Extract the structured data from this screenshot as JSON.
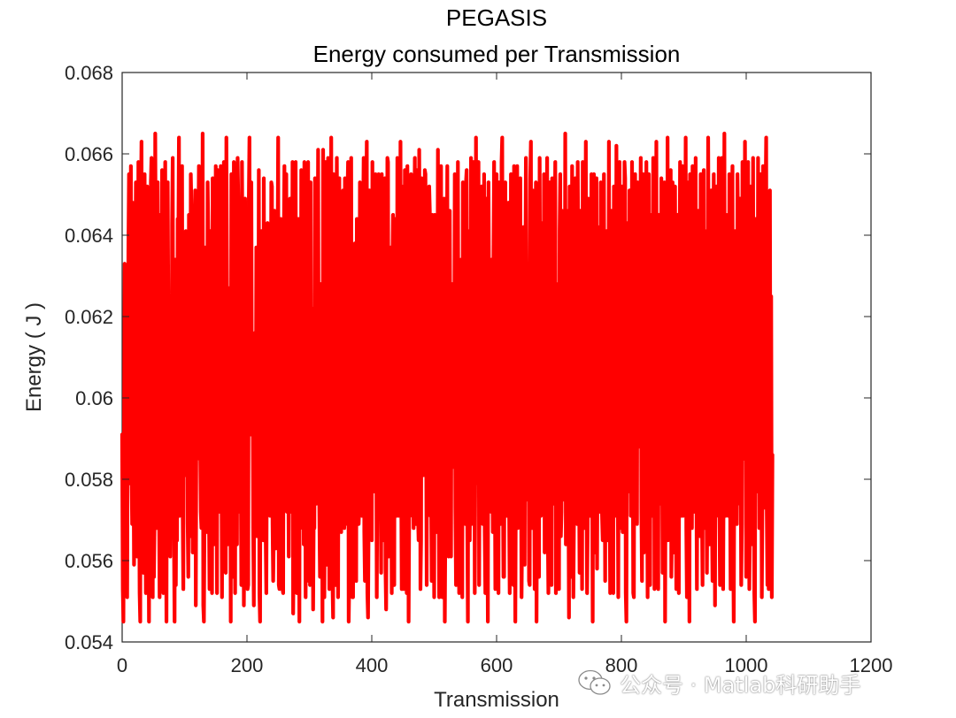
{
  "chart_data": {
    "type": "line",
    "title": "PEGASIS",
    "subtitle": "Energy consumed per Transmission",
    "xlabel": "Transmission",
    "ylabel": "Energy ( J )",
    "xlim": [
      0,
      1200
    ],
    "ylim": [
      0.054,
      0.068
    ],
    "xticks": [
      0,
      200,
      400,
      600,
      800,
      1000,
      1200
    ],
    "xtick_labels": [
      "0",
      "200",
      "400",
      "600",
      "800",
      "1000",
      "1200"
    ],
    "yticks": [
      0.054,
      0.056,
      0.058,
      0.06,
      0.062,
      0.064,
      0.066,
      0.068
    ],
    "ytick_labels": [
      "0.054",
      "0.056",
      "0.058",
      "0.06",
      "0.062",
      "0.064",
      "0.066",
      "0.068"
    ],
    "grid": false,
    "series": [
      {
        "color": "#ff0000",
        "x_start": 0,
        "x_step": 1,
        "values": [
          0.0591,
          0.0553,
          0.0545,
          0.0586,
          0.0633,
          0.0571,
          0.0592,
          0.0589,
          0.0551,
          0.0595,
          0.0636,
          0.0655,
          0.0579,
          0.0606,
          0.0657,
          0.0584,
          0.0569,
          0.0648,
          0.0591,
          0.0559,
          0.0571,
          0.0623,
          0.0653,
          0.0614,
          0.0561,
          0.0592,
          0.0658,
          0.0586,
          0.0552,
          0.0545,
          0.0646,
          0.0663,
          0.0602,
          0.0572,
          0.0557,
          0.0613,
          0.0655,
          0.0592,
          0.0552,
          0.0581,
          0.0652,
          0.0628,
          0.0582,
          0.0545,
          0.0599,
          0.0596,
          0.0653,
          0.0659,
          0.0569,
          0.0551,
          0.0647,
          0.0556,
          0.0571,
          0.0665,
          0.0629,
          0.0568,
          0.0586,
          0.0653,
          0.0623,
          0.0578,
          0.0551,
          0.0645,
          0.0588,
          0.0572,
          0.0656,
          0.0621,
          0.0552,
          0.0594,
          0.0629,
          0.0658,
          0.0581,
          0.0545,
          0.0621,
          0.0653,
          0.0619,
          0.0569,
          0.0591,
          0.0561,
          0.0603,
          0.0571,
          0.0643,
          0.0659,
          0.0578,
          0.0567,
          0.0545,
          0.0634,
          0.0554,
          0.0583,
          0.0565,
          0.0644,
          0.0638,
          0.0664,
          0.0571,
          0.0587,
          0.0622,
          0.0629,
          0.0657,
          0.0572,
          0.0553,
          0.0635,
          0.0598,
          0.0581,
          0.0641,
          0.0593,
          0.0633,
          0.0569,
          0.0556,
          0.0645,
          0.0593,
          0.0566,
          0.0655,
          0.0647,
          0.0599,
          0.0562,
          0.0574,
          0.0623,
          0.0625,
          0.0651,
          0.0549,
          0.0597,
          0.0588,
          0.0592,
          0.0637,
          0.0657,
          0.0585,
          0.0589,
          0.0572,
          0.0568,
          0.0606,
          0.0665,
          0.0549,
          0.0545,
          0.0571,
          0.0637,
          0.0615,
          0.0597,
          0.0567,
          0.0653,
          0.0641,
          0.0575,
          0.0553,
          0.0641,
          0.0568,
          0.0604,
          0.0552,
          0.0654,
          0.0631,
          0.0564,
          0.0584,
          0.0602,
          0.0657,
          0.0589,
          0.0552,
          0.0656,
          0.0633,
          0.0594,
          0.0572,
          0.0581,
          0.0657,
          0.0589,
          0.0551,
          0.0635,
          0.0574,
          0.0658,
          0.0569,
          0.0591,
          0.0557,
          0.0664,
          0.0628,
          0.0564,
          0.0584,
          0.0627,
          0.0569,
          0.0619,
          0.0545,
          0.0655,
          0.0586,
          0.0556,
          0.0587,
          0.0658,
          0.0613,
          0.0552,
          0.0648,
          0.0611,
          0.0564,
          0.0659,
          0.0649,
          0.0572,
          0.0591,
          0.0646,
          0.0587,
          0.0554,
          0.0658,
          0.0631,
          0.0606,
          0.0549,
          0.0568,
          0.0649,
          0.0579,
          0.0625,
          0.0586,
          0.0553,
          0.0554,
          0.0649,
          0.0664,
          0.0595,
          0.0591,
          0.0653,
          0.0591,
          0.0611,
          0.0568,
          0.0549,
          0.0598,
          0.0616,
          0.0572,
          0.0637,
          0.0566,
          0.0589,
          0.0587,
          0.0656,
          0.0552,
          0.0545,
          0.0623,
          0.0641,
          0.0606,
          0.0575,
          0.0565,
          0.0654,
          0.0594,
          0.0587,
          0.0566,
          0.0552,
          0.0591,
          0.0643,
          0.0578,
          0.0604,
          0.0573,
          0.0571,
          0.0607,
          0.0653,
          0.0652,
          0.0569,
          0.0555,
          0.0567,
          0.0646,
          0.0618,
          0.0563,
          0.0585,
          0.0624,
          0.0632,
          0.0664,
          0.0554,
          0.0553,
          0.0616,
          0.0644,
          0.0588,
          0.0589,
          0.0553,
          0.0552,
          0.0636,
          0.0657,
          0.0592,
          0.0576,
          0.0655,
          0.0572,
          0.0646,
          0.0587,
          0.0561,
          0.0628,
          0.0649,
          0.0588,
          0.0572,
          0.0603,
          0.0658,
          0.0547,
          0.0565,
          0.0593,
          0.0627,
          0.0658,
          0.0571,
          0.0552,
          0.0612,
          0.0644,
          0.0588,
          0.0545,
          0.0644,
          0.0568,
          0.0656,
          0.0578,
          0.0591,
          0.0602,
          0.0564,
          0.0658,
          0.0606,
          0.0551,
          0.0581,
          0.0571,
          0.0624,
          0.0658,
          0.0555,
          0.0609,
          0.0554,
          0.0653,
          0.0591,
          0.0622,
          0.0589,
          0.0548,
          0.0572,
          0.0568,
          0.0654,
          0.0644,
          0.0574,
          0.0589,
          0.0622,
          0.0661,
          0.0593,
          0.0572,
          0.0556,
          0.0628,
          0.0569,
          0.0591,
          0.0545,
          0.0661,
          0.0611,
          0.0551,
          0.0584,
          0.0658,
          0.0627,
          0.0559,
          0.0578,
          0.0659,
          0.0594,
          0.0553,
          0.0571,
          0.0622,
          0.0664,
          0.0599,
          0.0555,
          0.0546,
          0.0655,
          0.0598,
          0.0575,
          0.0554,
          0.0623,
          0.0659,
          0.0629,
          0.0551,
          0.0616,
          0.0654,
          0.0593,
          0.0589,
          0.0567,
          0.0631,
          0.0591,
          0.0651,
          0.0584,
          0.0568,
          0.0654,
          0.0569,
          0.0588,
          0.0614,
          0.0649,
          0.0658,
          0.0545,
          0.0556,
          0.0578,
          0.0629,
          0.0659,
          0.0582,
          0.0551,
          0.0551,
          0.0615,
          0.0584,
          0.0638,
          0.0571,
          0.0555,
          0.0644,
          0.0631,
          0.0589,
          0.0569,
          0.0574,
          0.0653,
          0.0593,
          0.0586,
          0.0571,
          0.0588,
          0.0641,
          0.0659,
          0.0567,
          0.0555,
          0.0618,
          0.0646,
          0.0663,
          0.0552,
          0.0546,
          0.0572,
          0.0651,
          0.0627,
          0.0589,
          0.0595,
          0.0565,
          0.0658,
          0.0581,
          0.0595,
          0.0577,
          0.0581,
          0.0655,
          0.0604,
          0.0551,
          0.0583,
          0.0593,
          0.0655,
          0.0572,
          0.0649,
          0.0587,
          0.0557,
          0.0655,
          0.0628,
          0.0591,
          0.0565,
          0.0636,
          0.0654,
          0.0558,
          0.0548,
          0.0582,
          0.0659,
          0.0658,
          0.0561,
          0.0567,
          0.0628,
          0.0637,
          0.0584,
          0.0552,
          0.0631,
          0.0645,
          0.0589,
          0.0554,
          0.0644,
          0.0621,
          0.0589,
          0.0571,
          0.0659,
          0.0572,
          0.0571,
          0.0615,
          0.0588,
          0.0663,
          0.0585,
          0.0553,
          0.0597,
          0.0652,
          0.0553,
          0.0582,
          0.0656,
          0.0614,
          0.0587,
          0.0552,
          0.0657,
          0.0638,
          0.0545,
          0.0574,
          0.0595,
          0.0591,
          0.0655,
          0.0613,
          0.0571,
          0.0589,
          0.0568,
          0.0637,
          0.0659,
          0.0578,
          0.0569,
          0.0656,
          0.0591,
          0.0572,
          0.0565,
          0.0661,
          0.0624,
          0.0553,
          0.0565,
          0.0654,
          0.0599,
          0.0585,
          0.0581,
          0.0585,
          0.0656,
          0.0655,
          0.0597,
          0.0554,
          0.0616,
          0.0593,
          0.0582,
          0.0652,
          0.0646,
          0.0571,
          0.0581,
          0.0555,
          0.0645,
          0.0584,
          0.0592,
          0.0551,
          0.0645,
          0.0612,
          0.0591,
          0.0567,
          0.0599,
          0.0661,
          0.0586,
          0.0551,
          0.0557,
          0.0606,
          0.0657,
          0.0594,
          0.0551,
          0.0624,
          0.0596,
          0.0649,
          0.0545,
          0.0571,
          0.0563,
          0.0616,
          0.0657,
          0.0574,
          0.0561,
          0.0588,
          0.0646,
          0.0599,
          0.0561,
          0.0628,
          0.0628,
          0.0592,
          0.0583,
          0.0596,
          0.0655,
          0.0573,
          0.0554,
          0.0627,
          0.0578,
          0.0658,
          0.0589,
          0.0552,
          0.0622,
          0.0589,
          0.0634,
          0.0576,
          0.0551,
          0.0653,
          0.0588,
          0.0593,
          0.0582,
          0.0569,
          0.0653,
          0.0656,
          0.0571,
          0.0545,
          0.0641,
          0.0625,
          0.0565,
          0.0591,
          0.0659,
          0.0569,
          0.0574,
          0.0592,
          0.0658,
          0.0631,
          0.0552,
          0.0589,
          0.0664,
          0.0584,
          0.0592,
          0.0579,
          0.0658,
          0.0554,
          0.0593,
          0.0578,
          0.0641,
          0.0652,
          0.0571,
          0.0569,
          0.0588,
          0.0655,
          0.0567,
          0.0552,
          0.0638,
          0.0649,
          0.0581,
          0.0545,
          0.0653,
          0.0624,
          0.0596,
          0.0589,
          0.0572,
          0.0634,
          0.0589,
          0.0567,
          0.0634,
          0.0658,
          0.0592,
          0.0553,
          0.0598,
          0.0655,
          0.0576,
          0.0613,
          0.0552,
          0.0653,
          0.0622,
          0.0569,
          0.0593,
          0.0658,
          0.0664,
          0.0583,
          0.0556,
          0.0556,
          0.0602,
          0.0653,
          0.0581,
          0.0571,
          0.0637,
          0.0574,
          0.0648,
          0.0575,
          0.0552,
          0.0571,
          0.0655,
          0.0636,
          0.0588,
          0.0588,
          0.0554,
          0.0657,
          0.0593,
          0.0545,
          0.0583,
          0.0645,
          0.0657,
          0.0568,
          0.0571,
          0.0592,
          0.0622,
          0.0654,
          0.0589,
          0.0551,
          0.0569,
          0.0631,
          0.0642,
          0.0592,
          0.0559,
          0.0626,
          0.0659,
          0.0628,
          0.0575,
          0.0588,
          0.0621,
          0.0555,
          0.0554,
          0.0654,
          0.0663,
          0.0579,
          0.0568,
          0.0651,
          0.0599,
          0.0593,
          0.0553,
          0.0617,
          0.0653,
          0.0545,
          0.0584,
          0.0647,
          0.0588,
          0.0556,
          0.0659,
          0.0613,
          0.0571,
          0.0597,
          0.0643,
          0.0594,
          0.0574,
          0.0655,
          0.0562,
          0.0591,
          0.0573,
          0.0616,
          0.0659,
          0.0569,
          0.0552,
          0.0581,
          0.0653,
          0.0588,
          0.0589,
          0.0554,
          0.0654,
          0.0636,
          0.0574,
          0.0586,
          0.0632,
          0.0658,
          0.0552,
          0.0561,
          0.0628,
          0.0623,
          0.0589,
          0.0553,
          0.0641,
          0.0655,
          0.0566,
          0.0572,
          0.0646,
          0.0602,
          0.0575,
          0.0591,
          0.0589,
          0.0665,
          0.0564,
          0.0574,
          0.0621,
          0.0646,
          0.0582,
          0.0546,
          0.0652,
          0.0626,
          0.0556,
          0.0592,
          0.0657,
          0.0618,
          0.0551,
          0.0571,
          0.0599,
          0.0654,
          0.0571,
          0.0588,
          0.0569,
          0.0658,
          0.0632,
          0.0583,
          0.0557,
          0.0646,
          0.0571,
          0.0592,
          0.0553,
          0.0658,
          0.0631,
          0.0568,
          0.0587,
          0.0613,
          0.0663,
          0.0581,
          0.0552,
          0.0569,
          0.0649,
          0.0591,
          0.0589,
          0.0571,
          0.0613,
          0.0655,
          0.0585,
          0.0545,
          0.0608,
          0.0655,
          0.0597,
          0.0562,
          0.0623,
          0.0654,
          0.0558,
          0.0591,
          0.0574,
          0.0642,
          0.0572,
          0.0574,
          0.0653,
          0.0584,
          0.0571,
          0.0565,
          0.0625,
          0.0655,
          0.0589,
          0.0555,
          0.0639,
          0.0641,
          0.0595,
          0.0565,
          0.0586,
          0.0663,
          0.0583,
          0.0552,
          0.0596,
          0.0646,
          0.0575,
          0.0596,
          0.0552,
          0.0652,
          0.0615,
          0.0571,
          0.0583,
          0.0662,
          0.0621,
          0.0585,
          0.0551,
          0.0636,
          0.0658,
          0.0592,
          0.0568,
          0.0574,
          0.0652,
          0.0567,
          0.0589,
          0.0596,
          0.0658,
          0.0654,
          0.0552,
          0.0545,
          0.0622,
          0.0643,
          0.0596,
          0.0577,
          0.0651,
          0.0621,
          0.0571,
          0.0581,
          0.0658,
          0.0599,
          0.0552,
          0.0551,
          0.0625,
          0.0655,
          0.0587,
          0.0573,
          0.0569,
          0.0653,
          0.0591,
          0.0591,
          0.0588,
          0.0627,
          0.0659,
          0.0573,
          0.0555,
          0.0645,
          0.0655,
          0.0562,
          0.0582,
          0.0617,
          0.0616,
          0.0658,
          0.0591,
          0.0551,
          0.0594,
          0.0655,
          0.0589,
          0.0554,
          0.0645,
          0.0596,
          0.0571,
          0.0586,
          0.0659,
          0.0646,
          0.0553,
          0.0585,
          0.0612,
          0.0663,
          0.0568,
          0.0571,
          0.0553,
          0.0645,
          0.0634,
          0.0589,
          0.0574,
          0.0654,
          0.0591,
          0.0557,
          0.0624,
          0.0574,
          0.0653,
          0.0545,
          0.0591,
          0.0643,
          0.0582,
          0.0664,
          0.0565,
          0.0573,
          0.0628,
          0.0591,
          0.0656,
          0.0556,
          0.0568,
          0.0653,
          0.0635,
          0.0562,
          0.0586,
          0.0652,
          0.0583,
          0.0553,
          0.0637,
          0.0645,
          0.0589,
          0.0552,
          0.0623,
          0.0658,
          0.0599,
          0.0571,
          0.0584,
          0.0657,
          0.0571,
          0.0589,
          0.0578,
          0.0624,
          0.0664,
          0.0568,
          0.0551,
          0.0653,
          0.0617,
          0.0595,
          0.0545,
          0.0655,
          0.0633,
          0.0586,
          0.0568,
          0.0657,
          0.0638,
          0.0572,
          0.0593,
          0.0615,
          0.0659,
          0.0583,
          0.0553,
          0.0591,
          0.0646,
          0.0594,
          0.0581,
          0.0566,
          0.0655,
          0.0591,
          0.0574,
          0.0554,
          0.0654,
          0.0656,
          0.0568,
          0.0572,
          0.0641,
          0.0592,
          0.0557,
          0.0581,
          0.0664,
          0.0626,
          0.0564,
          0.0588,
          0.0631,
          0.0651,
          0.0572,
          0.0555,
          0.0629,
          0.0655,
          0.0591,
          0.0549,
          0.0619,
          0.0652,
          0.0593,
          0.0588,
          0.0571,
          0.0659,
          0.0574,
          0.0554,
          0.0638,
          0.0615,
          0.0659,
          0.0586,
          0.0553,
          0.0587,
          0.0665,
          0.0586,
          0.0571,
          0.0645,
          0.0634,
          0.0599,
          0.0571,
          0.0572,
          0.0655,
          0.0582,
          0.0553,
          0.0625,
          0.0648,
          0.0657,
          0.0569,
          0.0545,
          0.0587,
          0.0641,
          0.0586,
          0.0589,
          0.0569,
          0.0655,
          0.0641,
          0.0575,
          0.0574,
          0.0649,
          0.0591,
          0.0554,
          0.0569,
          0.0658,
          0.0633,
          0.0589,
          0.0585,
          0.0663,
          0.0615,
          0.0556,
          0.0574,
          0.0637,
          0.0658,
          0.0589,
          0.0553,
          0.0573,
          0.0652,
          0.0564,
          0.0584,
          0.0599,
          0.0659,
          0.0587,
          0.0552,
          0.0545,
          0.0644,
          0.0633,
          0.0591,
          0.0577,
          0.0659,
          0.0613,
          0.0568,
          0.0593,
          0.0655,
          0.0602,
          0.0551,
          0.0576,
          0.0657,
          0.0639,
          0.0573,
          0.0591,
          0.0649,
          0.0664,
          0.0572,
          0.0554,
          0.0633,
          0.0553,
          0.0586,
          0.0651,
          0.0566,
          0.0625,
          0.0551,
          0.0586
        ]
      }
    ]
  },
  "watermark": {
    "icon": "wechat-icon",
    "text": "公众号 · Matlab科研助手"
  }
}
